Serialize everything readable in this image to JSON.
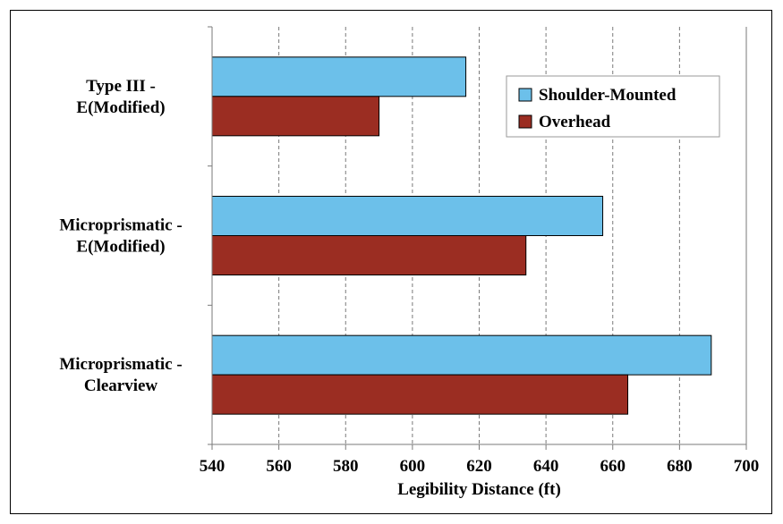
{
  "chart_data": {
    "type": "bar",
    "orientation": "horizontal",
    "categories": [
      [
        "Type III -",
        "E(Modified)"
      ],
      [
        "Microprismatic -",
        "E(Modified)"
      ],
      [
        "Microprismatic -",
        "Clearview"
      ]
    ],
    "series": [
      {
        "name": "Shoulder-Mounted",
        "color": "#6cc0ea",
        "values": [
          616,
          657,
          689.5
        ]
      },
      {
        "name": "Overhead",
        "color": "#9b2d22",
        "values": [
          590,
          634,
          664.5
        ]
      }
    ],
    "xlabel": "Legibility Distance (ft)",
    "xlim": [
      540,
      700
    ],
    "xticks": [
      540,
      560,
      580,
      600,
      620,
      640,
      660,
      680,
      700
    ],
    "grid": "vertical dashed",
    "legend_position": "top-right"
  }
}
